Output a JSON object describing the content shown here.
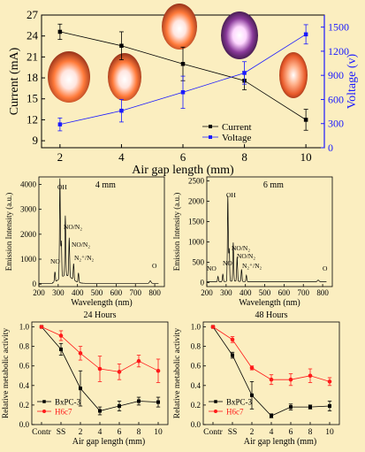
{
  "colors": {
    "background": "#fbeec0",
    "current": "#000000",
    "voltage": "#1a1aff",
    "bxpc3": "#000000",
    "h6c7": "#ff1a1a",
    "spectrum": "#000000",
    "plasma_glow": "#ffffff",
    "plasma_orange": "#ff5a1a",
    "plasma_purple": "#d070ff"
  },
  "chart_data": [
    {
      "id": "top",
      "type": "line",
      "x": [
        2,
        4,
        6,
        8,
        10
      ],
      "x_ticks": [
        "2",
        "4",
        "6",
        "8",
        "10"
      ],
      "xlim": [
        1.4,
        10.6
      ],
      "xlabel": "Air gap length (mm)",
      "ylabel_left": "Current (mA)",
      "ylabel_right": "Voltage (v)",
      "ylim_left": [
        8,
        27
      ],
      "ylim_right": [
        0,
        1650
      ],
      "left_ticks": [
        9,
        12,
        15,
        18,
        21,
        24,
        27
      ],
      "right_ticks": [
        0,
        300,
        600,
        900,
        1200,
        1500
      ],
      "series": [
        {
          "name": "Current",
          "axis": "left",
          "marker": "square",
          "color": "#000000",
          "values": [
            24.6,
            22.6,
            20.0,
            17.6,
            12.0
          ],
          "errors": [
            1.1,
            2.0,
            2.4,
            1.3,
            1.5
          ]
        },
        {
          "name": "Voltage",
          "axis": "right",
          "marker": "square",
          "color": "#1a1aff",
          "values": [
            290,
            460,
            690,
            930,
            1410
          ],
          "errors": [
            80,
            140,
            200,
            140,
            120
          ]
        }
      ],
      "legend": [
        "Current",
        "Voltage"
      ],
      "legend_position": "bottom-right",
      "insets": "plasma photographs at each gap"
    },
    {
      "id": "spectrum_4mm",
      "type": "line",
      "title": "4 mm",
      "xlabel": "Wavelength (nm)",
      "ylabel": "Emission Intensity (a.u.)",
      "xlim": [
        200,
        850
      ],
      "ylim": [
        -100,
        4300
      ],
      "x_ticks": [
        200,
        300,
        400,
        500,
        600,
        700,
        800
      ],
      "y_ticks": [
        0,
        1000,
        2000,
        3000,
        4000
      ],
      "peaks": [
        {
          "x": 283,
          "y": 400
        },
        {
          "x": 309,
          "y": 4000
        },
        {
          "x": 316,
          "y": 1450
        },
        {
          "x": 337,
          "y": 2400
        },
        {
          "x": 357,
          "y": 1550
        },
        {
          "x": 380,
          "y": 650
        },
        {
          "x": 405,
          "y": 380
        },
        {
          "x": 777,
          "y": 100
        }
      ],
      "baseline": 30,
      "labels": [
        "NO",
        "OH",
        "NO/N₂",
        "NO/N₂",
        "N₂⁺/N₂",
        "O"
      ]
    },
    {
      "id": "spectrum_6mm",
      "type": "line",
      "title": "6 mm",
      "xlabel": "Wavelength (nm)",
      "ylabel": "Emission Intensity (a.u.)",
      "xlim": [
        200,
        850
      ],
      "ylim": [
        -100,
        2600
      ],
      "x_ticks": [
        200,
        300,
        400,
        500,
        600,
        700,
        800
      ],
      "y_ticks": [
        0,
        500,
        1000,
        1500,
        2000,
        2500
      ],
      "peaks": [
        {
          "x": 258,
          "y": 130
        },
        {
          "x": 283,
          "y": 180
        },
        {
          "x": 309,
          "y": 2100
        },
        {
          "x": 316,
          "y": 800
        },
        {
          "x": 337,
          "y": 950
        },
        {
          "x": 357,
          "y": 600
        },
        {
          "x": 380,
          "y": 300
        },
        {
          "x": 405,
          "y": 160
        },
        {
          "x": 777,
          "y": 40
        }
      ],
      "baseline": 20,
      "labels": [
        "NO",
        "NO",
        "OH",
        "NO/N₂",
        "NO/N₂",
        "N₂⁺/N₂",
        "O"
      ]
    },
    {
      "id": "activity_24h",
      "type": "line",
      "title": "24 Hours",
      "xlabel": "Air gap length (mm)",
      "ylabel": "Relative metabolic activity",
      "categories": [
        "Contr",
        "SS",
        "2",
        "4",
        "6",
        "8",
        "10"
      ],
      "ylim": [
        0,
        1.05
      ],
      "y_ticks": [
        0.0,
        0.2,
        0.4,
        0.6,
        0.8,
        1.0
      ],
      "series": [
        {
          "name": "BxPC-3",
          "color": "#000000",
          "values": [
            1.0,
            0.77,
            0.37,
            0.14,
            0.19,
            0.24,
            0.23
          ],
          "errors": [
            0.01,
            0.06,
            0.18,
            0.04,
            0.05,
            0.04,
            0.05
          ]
        },
        {
          "name": "H6c7",
          "color": "#ff1a1a",
          "values": [
            1.0,
            0.91,
            0.73,
            0.57,
            0.54,
            0.65,
            0.55
          ],
          "errors": [
            0.01,
            0.05,
            0.07,
            0.13,
            0.08,
            0.06,
            0.12
          ]
        }
      ],
      "legend_position": "bottom-left"
    },
    {
      "id": "activity_48h",
      "type": "line",
      "title": "48 Hours",
      "xlabel": "Air gap length (mm)",
      "ylabel": "Relative metabolic activity",
      "categories": [
        "Contr",
        "SS",
        "2",
        "4",
        "6",
        "8",
        "10"
      ],
      "ylim": [
        0,
        1.05
      ],
      "y_ticks": [
        0.0,
        0.2,
        0.4,
        0.6,
        0.8,
        1.0
      ],
      "series": [
        {
          "name": "BxPC-3",
          "color": "#000000",
          "values": [
            1.0,
            0.71,
            0.3,
            0.09,
            0.18,
            0.18,
            0.19
          ],
          "errors": [
            0.01,
            0.03,
            0.14,
            0.02,
            0.03,
            0.02,
            0.05
          ]
        },
        {
          "name": "H6c7",
          "color": "#ff1a1a",
          "values": [
            1.0,
            0.87,
            0.58,
            0.46,
            0.46,
            0.5,
            0.44
          ],
          "errors": [
            0.01,
            0.03,
            0.02,
            0.05,
            0.06,
            0.07,
            0.04
          ]
        }
      ],
      "legend_position": "bottom-left"
    }
  ]
}
